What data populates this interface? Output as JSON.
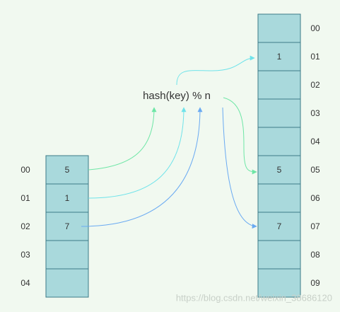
{
  "formula": "hash(key) % n",
  "left_array": {
    "cells": [
      {
        "index": "00",
        "value": "5"
      },
      {
        "index": "01",
        "value": "1"
      },
      {
        "index": "02",
        "value": "7"
      },
      {
        "index": "03"
      },
      {
        "index": "04"
      }
    ]
  },
  "right_array": {
    "cells": [
      {
        "index": "00"
      },
      {
        "index": "01",
        "value": "1"
      },
      {
        "index": "02"
      },
      {
        "index": "03"
      },
      {
        "index": "04"
      },
      {
        "index": "05",
        "value": "5"
      },
      {
        "index": "06"
      },
      {
        "index": "07",
        "value": "7"
      },
      {
        "index": "08"
      },
      {
        "index": "09"
      }
    ]
  },
  "watermark": "https://blog.csdn.net/weixin_38686120"
}
